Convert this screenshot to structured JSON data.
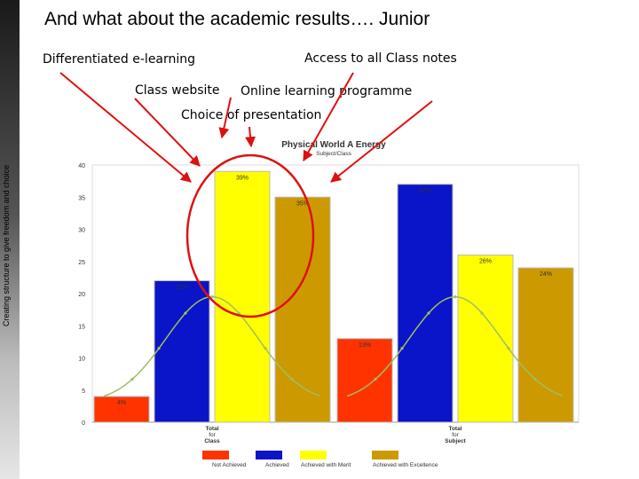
{
  "slide": {
    "title": "And what about the academic results…. Junior",
    "side_text": "Creating structure to give freedom and choice"
  },
  "annotations": [
    {
      "id": "differentiated",
      "text": "Differentiated e-learning"
    },
    {
      "id": "class-notes",
      "text": "Access to all Class notes"
    },
    {
      "id": "class-website",
      "text": "Class website"
    },
    {
      "id": "online-learning",
      "text": "Online learning programme"
    },
    {
      "id": "choice",
      "text": "Choice of presentation"
    }
  ],
  "colors": {
    "not_achieved": "#ff3300",
    "achieved": "#0a14c8",
    "merit": "#ffff00",
    "excellence": "#cc9900",
    "curve": "#9fc060",
    "arrow": "#dd1111",
    "circle": "#dd1111"
  },
  "chart_data": {
    "type": "bar",
    "title": "Physical World A Energy",
    "subtitle": "Subject/Class",
    "ylim": [
      0,
      40
    ],
    "yticks": [
      0,
      5,
      10,
      15,
      20,
      25,
      30,
      35,
      40
    ],
    "groups": [
      {
        "label": "Total for Class",
        "bars": [
          {
            "series": "Not Achieved",
            "value": 4,
            "label": "4%"
          },
          {
            "series": "Achieved",
            "value": 22,
            "label": "22%"
          },
          {
            "series": "Achieved with Merit",
            "value": 39,
            "label": "39%"
          },
          {
            "series": "Achieved with Excellence",
            "value": 35,
            "label": "35%"
          }
        ]
      },
      {
        "label": "Total for Subject",
        "bars": [
          {
            "series": "Not Achieved",
            "value": 13,
            "label": "13%"
          },
          {
            "series": "Achieved",
            "value": 37,
            "label": "37%"
          },
          {
            "series": "Achieved with Merit",
            "value": 26,
            "label": "26%"
          },
          {
            "series": "Achieved with Excellence",
            "value": 24,
            "label": "24%"
          }
        ]
      }
    ],
    "legend": [
      "Not Achieved",
      "Achieved",
      "Achieved with Merit",
      "Achieved with Excellence"
    ],
    "legend_position": "bottom",
    "overlay": "bell curve per group"
  }
}
